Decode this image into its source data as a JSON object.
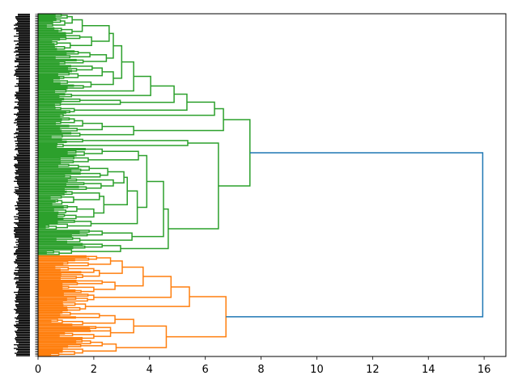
{
  "chart_data": {
    "type": "dendrogram",
    "orientation": "left",
    "title": "",
    "xlabel": "",
    "ylabel": "",
    "xlim": [
      0,
      16.78
    ],
    "xticks": [
      0,
      2,
      4,
      6,
      8,
      10,
      12,
      14,
      16
    ],
    "xtick_labels": [
      "0",
      "2",
      "4",
      "6",
      "8",
      "10",
      "12",
      "14",
      "16"
    ],
    "grid": false,
    "leaf_labels_legible": false,
    "colors": {
      "above_threshold": "#1f77b4",
      "cluster_1": "#2ca02c",
      "cluster_2": "#ff7f0e",
      "leaf_labels": "#000000"
    },
    "tree": {
      "h": 15.95,
      "color": "#1f77b4",
      "c": [
        {
          "h": 7.6,
          "color": "#2ca02c",
          "c": [
            {
              "h": 6.65,
              "c": [
                {
                  "h": 6.33,
                  "c": [
                    {
                      "h": 5.34,
                      "c": [
                        {
                          "h": 4.88,
                          "c": [
                            {
                              "h": 4.04,
                              "c": [
                                {
                                  "h": 3.43,
                                  "c": [
                                    {
                                      "h": 3.0,
                                      "c": [
                                        {
                                          "h": 2.7,
                                          "c": [
                                            {
                                              "n": 30,
                                              "h": 2.55
                                            },
                                            {
                                              "n": 12,
                                              "h": 2.45
                                            }
                                          ]
                                        },
                                        {
                                          "h": 2.7,
                                          "c": [
                                            {
                                              "n": 12,
                                              "h": 2.3
                                            },
                                            {
                                              "n": 8,
                                              "h": 1.9
                                            }
                                          ]
                                        }
                                      ]
                                    },
                                    {
                                      "n": 3,
                                      "h": 1.0
                                    }
                                  ]
                                },
                                {
                                  "n": 4,
                                  "h": 1.2
                                }
                              ]
                            },
                            {
                              "h": 2.95,
                              "c": [
                                {
                                  "n": 4,
                                  "h": 1.5
                                },
                                {
                                  "n": 3,
                                  "h": 0.8
                                }
                              ]
                            }
                          ]
                        },
                        {
                          "n": 6,
                          "h": 1.3
                        }
                      ]
                    },
                    {
                      "n": 3,
                      "h": 0.9
                    }
                  ]
                },
                {
                  "h": 3.43,
                  "c": [
                    {
                      "h": 2.3,
                      "c": [
                        {
                          "n": 8,
                          "h": 1.6
                        },
                        {
                          "n": 4,
                          "h": 1.4
                        }
                      ]
                    },
                    {
                      "n": 5,
                      "h": 1.5
                    }
                  ]
                }
              ]
            },
            {
              "h": 6.47,
              "c": [
                {
                  "h": 5.37,
                  "c": [
                    {
                      "n": 4,
                      "h": 1.6
                    },
                    {
                      "n": 4,
                      "h": 0.9
                    }
                  ]
                },
                {
                  "h": 4.67,
                  "c": [
                    {
                      "h": 4.5,
                      "c": [
                        {
                          "h": 3.9,
                          "c": [
                            {
                              "h": 3.6,
                              "c": [
                                {
                                  "n": 7,
                                  "h": 2.3
                                },
                                {
                                  "n": 6,
                                  "h": 1.8
                                }
                              ]
                            },
                            {
                              "h": 3.56,
                              "c": [
                                {
                                  "h": 3.2,
                                  "c": [
                                    {
                                      "h": 3.08,
                                      "c": [
                                        {
                                          "n": 12,
                                          "h": 2.5
                                        },
                                        {
                                          "n": 10,
                                          "h": 2.7
                                        }
                                      ]
                                    },
                                    {
                                      "h": 2.36,
                                      "c": [
                                        {
                                          "n": 12,
                                          "h": 2.2
                                        },
                                        {
                                          "n": 12,
                                          "h": 2.0
                                        }
                                      ]
                                    }
                                  ]
                                },
                                {
                                  "n": 8,
                                  "h": 1.9
                                }
                              ]
                            }
                          ]
                        },
                        {
                          "h": 3.37,
                          "c": [
                            {
                              "n": 6,
                              "h": 2.3
                            },
                            {
                              "n": 5,
                              "h": 1.5
                            }
                          ]
                        }
                      ]
                    },
                    {
                      "h": 2.96,
                      "c": [
                        {
                          "n": 5,
                          "h": 2.3
                        },
                        {
                          "n": 5,
                          "h": 1.2
                        }
                      ]
                    }
                  ]
                }
              ]
            }
          ]
        },
        {
          "h": 6.74,
          "color": "#ff7f0e",
          "c": [
            {
              "h": 5.43,
              "c": [
                {
                  "h": 4.77,
                  "c": [
                    {
                      "h": 3.77,
                      "c": [
                        {
                          "h": 3.02,
                          "c": [
                            {
                              "h": 2.6,
                              "c": [
                                {
                                  "n": 5,
                                  "h": 2.1
                                },
                                {
                                  "n": 4,
                                  "h": 1.8
                                }
                              ]
                            },
                            {
                              "h": 2.2,
                              "c": [
                                {
                                  "n": 6,
                                  "h": 2.0
                                },
                                {
                                  "n": 5,
                                  "h": 1.6
                                }
                              ]
                            }
                          ]
                        },
                        {
                          "h": 2.76,
                          "c": [
                            {
                              "n": 5,
                              "h": 2.3
                            },
                            {
                              "n": 6,
                              "h": 2.0
                            }
                          ]
                        }
                      ]
                    },
                    {
                      "n": 7,
                      "h": 2.0
                    }
                  ]
                },
                {
                  "n": 8,
                  "h": 1.7
                }
              ]
            },
            {
              "h": 4.6,
              "c": [
                {
                  "h": 3.43,
                  "c": [
                    {
                      "h": 2.76,
                      "c": [
                        {
                          "n": 6,
                          "h": 2.2
                        },
                        {
                          "n": 6,
                          "h": 1.6
                        }
                      ]
                    },
                    {
                      "h": 2.6,
                      "c": [
                        {
                          "n": 5,
                          "h": 2.6
                        },
                        {
                          "n": 6,
                          "h": 2.0
                        }
                      ]
                    }
                  ]
                },
                {
                  "h": 2.8,
                  "c": [
                    {
                      "n": 7,
                      "h": 2.3
                    },
                    {
                      "n": 7,
                      "h": 1.6
                    }
                  ]
                }
              ]
            }
          ]
        }
      ]
    }
  }
}
